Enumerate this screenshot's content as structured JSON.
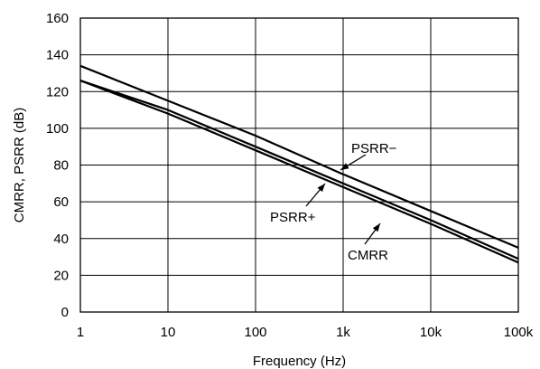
{
  "chart_data": {
    "type": "line",
    "x_scale": "log",
    "xlabel": "Frequency (Hz)",
    "ylabel": "CMRR, PSRR (dB)",
    "xlim": [
      1,
      100000
    ],
    "ylim": [
      0,
      160
    ],
    "grid": true,
    "x_ticks": [
      {
        "value": 1,
        "label": "1"
      },
      {
        "value": 10,
        "label": "10"
      },
      {
        "value": 100,
        "label": "100"
      },
      {
        "value": 1000,
        "label": "1k"
      },
      {
        "value": 10000,
        "label": "10k"
      },
      {
        "value": 100000,
        "label": "100k"
      }
    ],
    "y_ticks": [
      0,
      20,
      40,
      60,
      80,
      100,
      120,
      140,
      160
    ],
    "series": [
      {
        "name": "PSRR−",
        "x": [
          1,
          10,
          100,
          1000,
          10000,
          100000
        ],
        "y": [
          134,
          115,
          96,
          75,
          55,
          35
        ]
      },
      {
        "name": "PSRR+",
        "x": [
          1,
          10,
          100,
          1000,
          10000,
          100000
        ],
        "y": [
          126,
          110,
          90,
          70,
          50,
          29
        ]
      },
      {
        "name": "CMRR",
        "x": [
          1,
          10,
          100,
          1000,
          10000,
          100000
        ],
        "y": [
          126,
          108,
          88,
          68,
          48,
          27
        ]
      }
    ],
    "annotations": [
      {
        "text": "PSRR−",
        "series": "PSRR−"
      },
      {
        "text": "PSRR+",
        "series": "PSRR+"
      },
      {
        "text": "CMRR",
        "series": "CMRR"
      }
    ]
  }
}
